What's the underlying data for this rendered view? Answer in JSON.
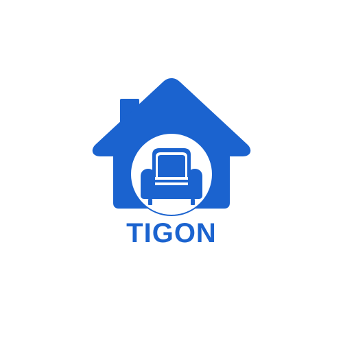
{
  "logo": {
    "brand_name": "TIGON",
    "icon": "house-armchair-icon",
    "color": "#1b63cf",
    "background": "#ffffff"
  }
}
